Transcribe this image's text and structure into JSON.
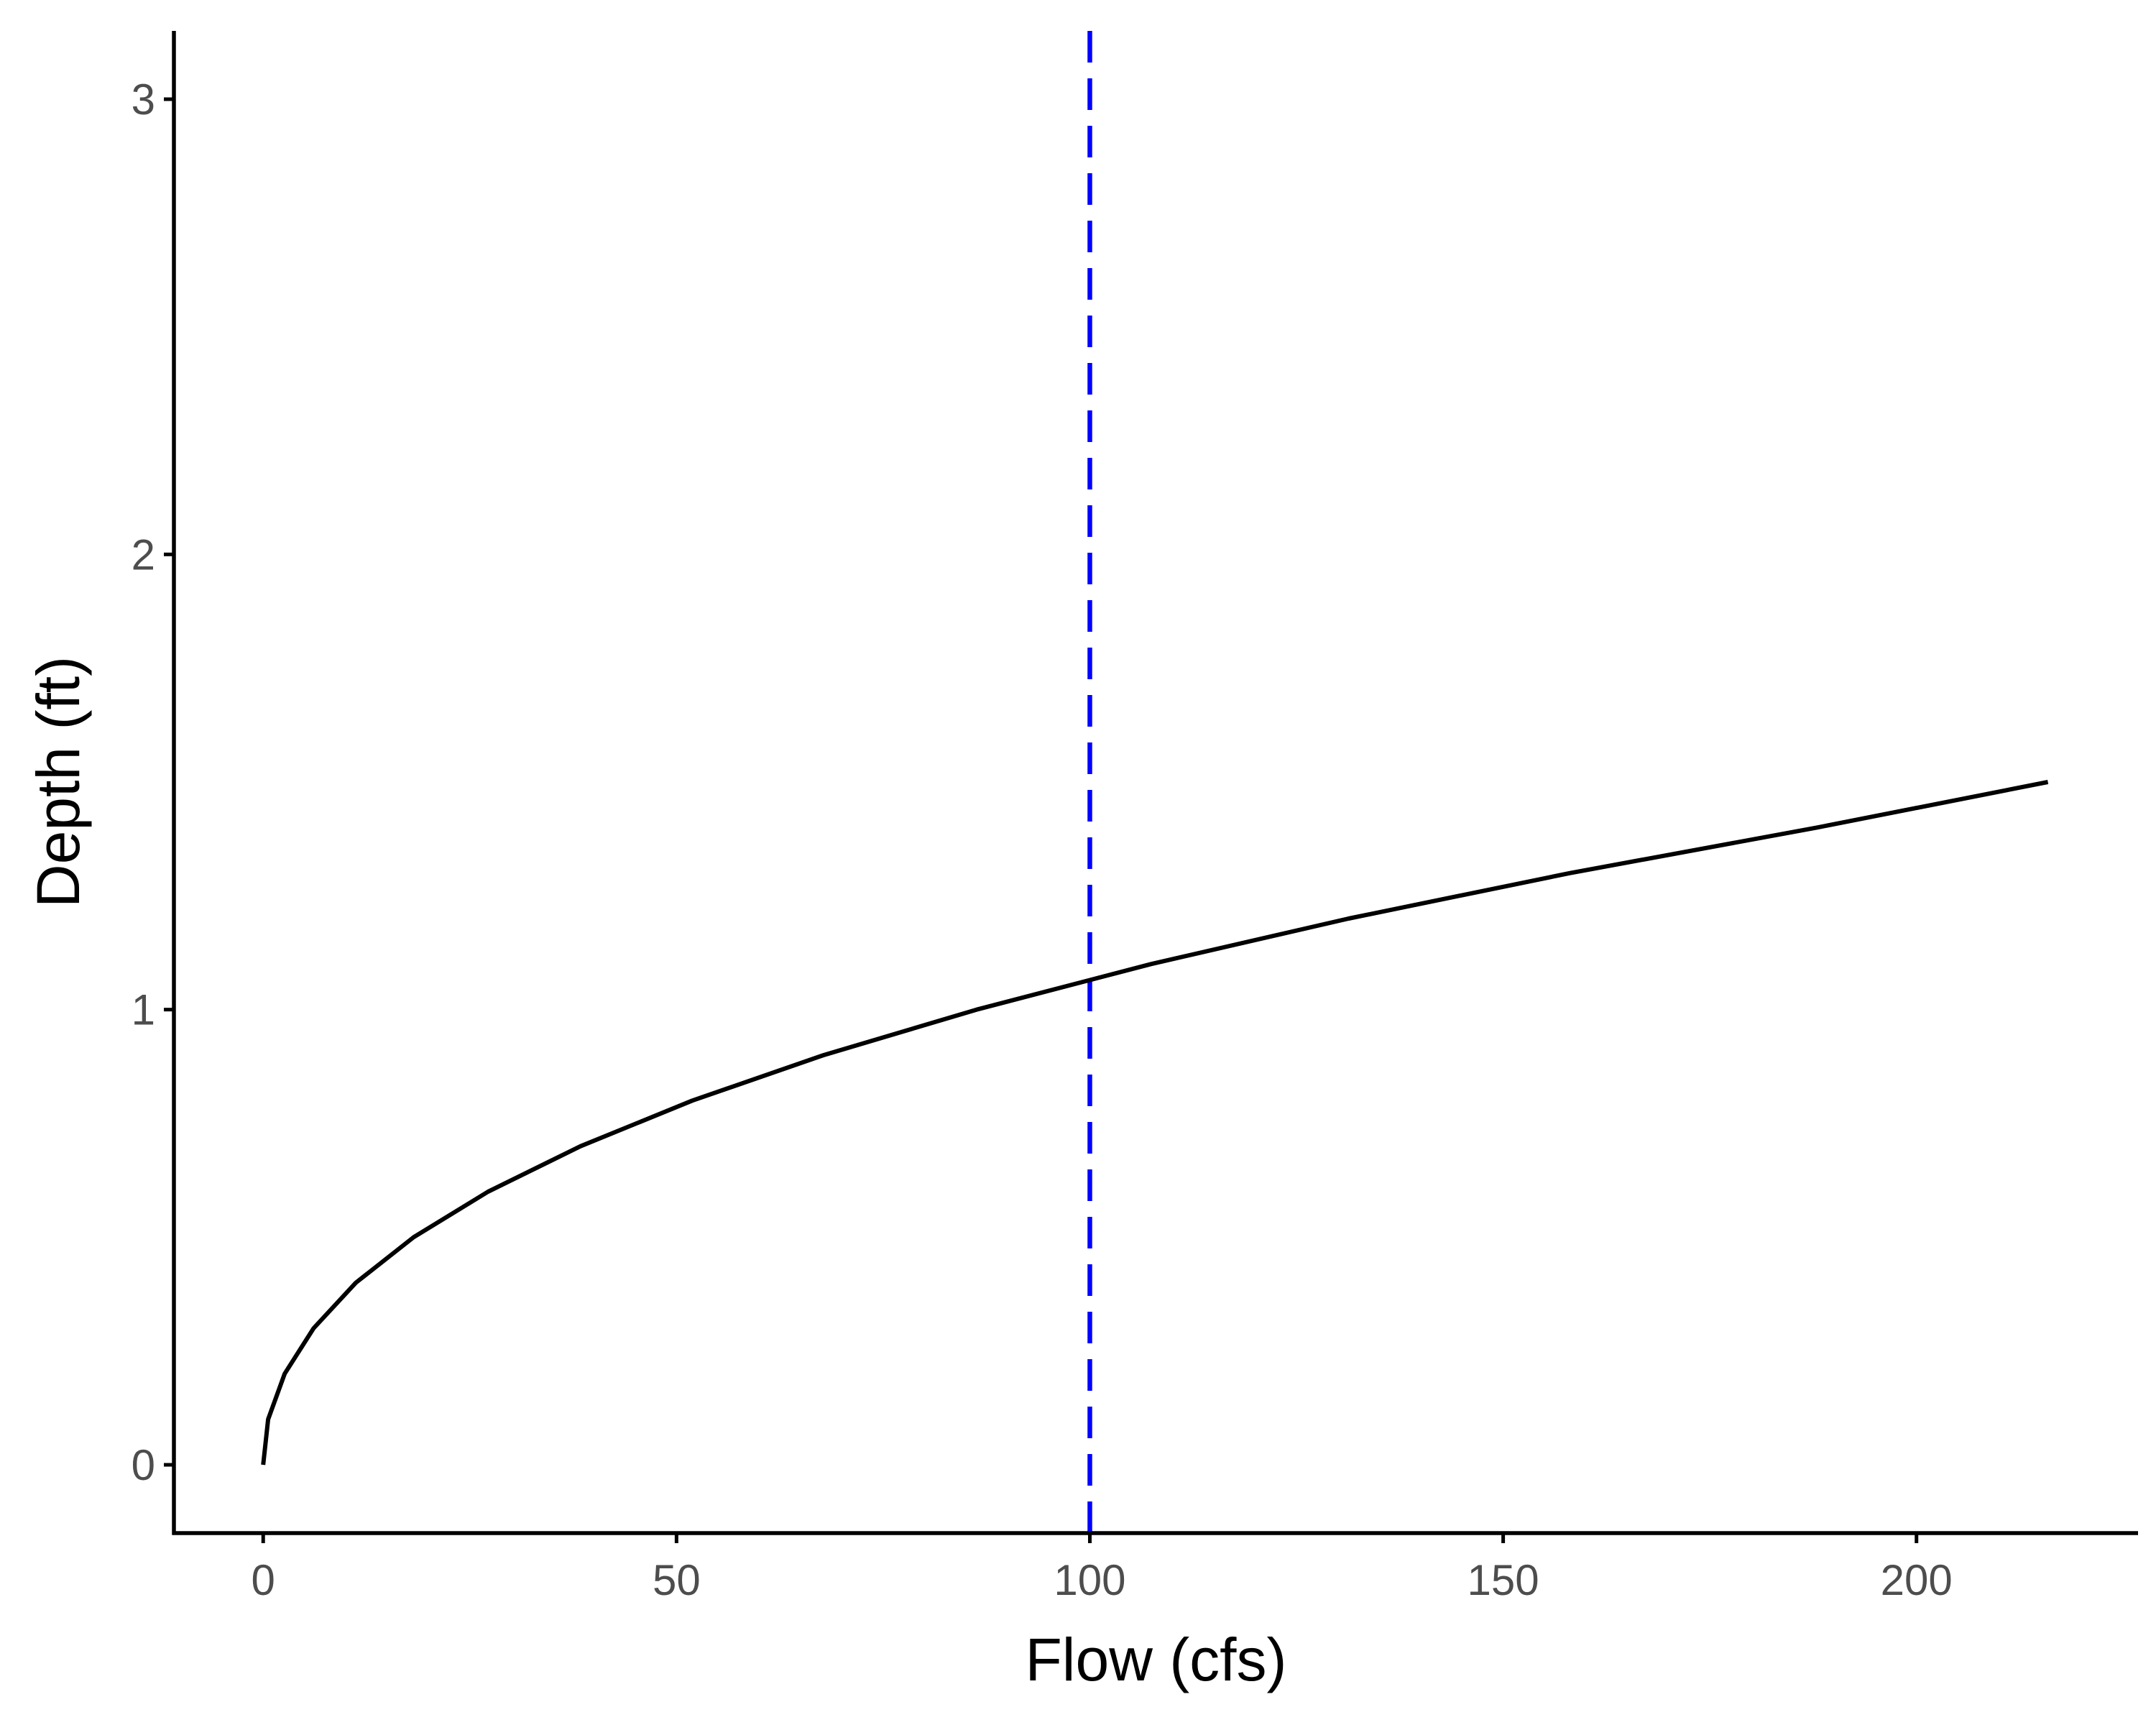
{
  "chart_data": {
    "type": "line",
    "title": "",
    "xlabel": "Flow (cfs)",
    "ylabel": "Depth (ft)",
    "xlim": [
      -10.8,
      226.8
    ],
    "ylim": [
      -0.15,
      3.15
    ],
    "x_ticks": [
      "0",
      "50",
      "100",
      "150",
      "200"
    ],
    "y_ticks": [
      "0",
      "1",
      "2",
      "3"
    ],
    "grid": false,
    "legend": "none",
    "series": [
      {
        "color": "#000000",
        "line_style": "solid",
        "x": [
          0,
          0.6,
          2.6,
          6.1,
          11.2,
          18.2,
          27.2,
          38.4,
          51.9,
          67.8,
          86.3,
          107.4,
          131.3,
          158.1,
          188.0,
          215.9
        ],
        "y": [
          0,
          0.1,
          0.2,
          0.3,
          0.4,
          0.5,
          0.6,
          0.7,
          0.8,
          0.9,
          1.0,
          1.1,
          1.2,
          1.3,
          1.4,
          1.5
        ]
      }
    ],
    "reference_lines": [
      {
        "orientation": "vertical",
        "x": 100,
        "color": "#0000ff",
        "line_style": "dashed"
      }
    ]
  }
}
